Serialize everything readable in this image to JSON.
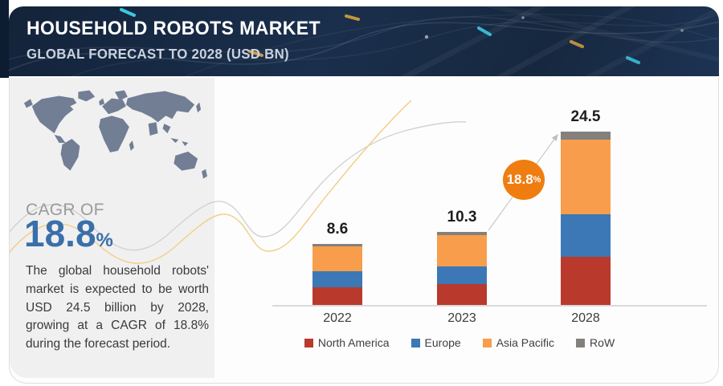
{
  "header": {
    "title": "HOUSEHOLD ROBOTS MARKET",
    "subtitle": "GLOBAL FORECAST TO 2028 (USD BN)"
  },
  "sidebar": {
    "cagr_label": "CAGR OF",
    "cagr_value": "18.8",
    "cagr_unit": "%",
    "description": "The global household robots' market is expected to be worth USD 24.5 billion by 2028, growing at a CAGR of 18.8% during the forecast period."
  },
  "badge": {
    "value": "18.8",
    "unit": "%",
    "color": "#ef7d10"
  },
  "chart_data": {
    "type": "bar",
    "stacked": true,
    "categories": [
      "2022",
      "2023",
      "2028"
    ],
    "totals": [
      8.6,
      10.3,
      24.5
    ],
    "series": [
      {
        "name": "North America",
        "color": "#b93a2d",
        "values": [
          2.5,
          3.0,
          6.8
        ]
      },
      {
        "name": "Europe",
        "color": "#3b78b5",
        "values": [
          2.3,
          2.5,
          6.0
        ]
      },
      {
        "name": "Asia Pacific",
        "color": "#f89d4c",
        "values": [
          3.5,
          4.4,
          10.6
        ]
      },
      {
        "name": "RoW",
        "color": "#84807e",
        "values": [
          0.3,
          0.4,
          1.1
        ]
      }
    ],
    "title": "Household Robots Market",
    "subtitle": "Global forecast to 2028",
    "unit": "USD BN",
    "xlabel": "",
    "ylabel": "",
    "legend_position": "bottom",
    "grid": false,
    "annotations": [
      {
        "text": "18.8%",
        "meaning": "CAGR 2023-2028"
      }
    ]
  },
  "colors": {
    "header_bg": "#16283f",
    "edge_strip": "#0d1c30",
    "gray_panel": "#f0f0f1",
    "map": "#6b7890",
    "cagr_blue": "#3a70a9",
    "squiggle_gray": "#d2d2d2",
    "squiggle_yellow": "#f3cd85",
    "axis": "#dadada"
  }
}
